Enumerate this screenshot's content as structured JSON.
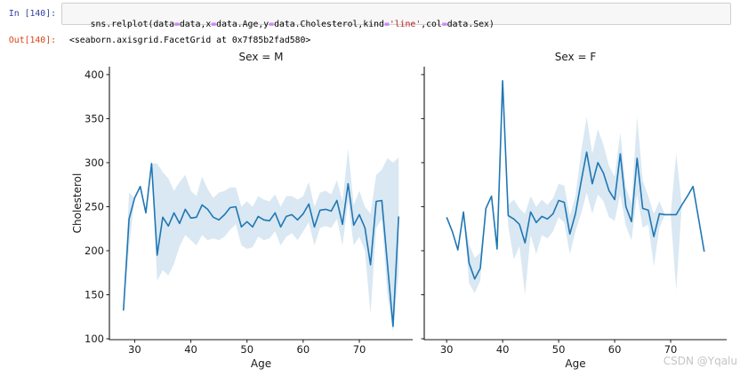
{
  "notebook": {
    "in_prompt": "In [140]:",
    "out_prompt": "Out[140]:",
    "code_tokens": [
      {
        "text": "sns.relplot(data",
        "style": "plain"
      },
      {
        "text": "=",
        "style": "operator"
      },
      {
        "text": "data,x",
        "style": "plain"
      },
      {
        "text": "=",
        "style": "operator"
      },
      {
        "text": "data.Age,y",
        "style": "plain"
      },
      {
        "text": "=",
        "style": "operator"
      },
      {
        "text": "data.Cholesterol,kind",
        "style": "plain"
      },
      {
        "text": "=",
        "style": "operator"
      },
      {
        "text": "'line'",
        "style": "string"
      },
      {
        "text": ",col",
        "style": "plain"
      },
      {
        "text": "=",
        "style": "operator"
      },
      {
        "text": "data.Sex)",
        "style": "plain"
      }
    ],
    "output_text": "<seaborn.axisgrid.FacetGrid at 0x7f85b2fad580>"
  },
  "watermark": "CSDN @Yqalu",
  "colors": {
    "line": "#1f77b4",
    "band_fill": "#1f77b4",
    "band_opacity": 0.17,
    "axis": "#1a1a1a",
    "in_prompt": "#303f9f",
    "out_prompt": "#d84315",
    "code_operator": "#aa22ff",
    "code_string": "#ba2121",
    "watermark": "#c5c5c9",
    "cell_bg": "#f7f7f7",
    "cell_border": "#cfcfcf"
  },
  "chart_data": [
    {
      "type": "line",
      "title": "Sex = M",
      "xlabel": "Age",
      "ylabel": "Cholesterol",
      "xticks": [
        30,
        40,
        50,
        60,
        70
      ],
      "yticks": [
        100,
        150,
        200,
        250,
        300,
        350,
        400
      ],
      "ylim": [
        99,
        409
      ],
      "x": [
        28,
        29,
        30,
        31,
        32,
        33,
        34,
        35,
        36,
        37,
        38,
        39,
        40,
        41,
        42,
        43,
        44,
        45,
        46,
        47,
        48,
        49,
        50,
        51,
        52,
        53,
        54,
        55,
        56,
        57,
        58,
        59,
        60,
        61,
        62,
        63,
        64,
        65,
        66,
        67,
        68,
        69,
        70,
        71,
        72,
        73,
        74,
        75,
        76,
        77
      ],
      "y": [
        132,
        236,
        260,
        273,
        243,
        299,
        195,
        238,
        228,
        243,
        231,
        247,
        237,
        238,
        252,
        247,
        238,
        235,
        241,
        249,
        250,
        227,
        233,
        227,
        239,
        235,
        234,
        243,
        227,
        239,
        241,
        235,
        242,
        253,
        227,
        246,
        247,
        245,
        257,
        230,
        276,
        229,
        241,
        226,
        184,
        256,
        257,
        185,
        114,
        239
      ],
      "band_lower": [
        132,
        204,
        260,
        273,
        243,
        299,
        166,
        178,
        172,
        185,
        205,
        218,
        212,
        206,
        218,
        212,
        214,
        212,
        216,
        224,
        230,
        206,
        202,
        204,
        216,
        212,
        214,
        222,
        206,
        216,
        220,
        212,
        222,
        232,
        206,
        226,
        228,
        226,
        236,
        206,
        256,
        206,
        216,
        200,
        128,
        226,
        236,
        150,
        108,
        176
      ],
      "band_upper": [
        132,
        266,
        260,
        273,
        243,
        299,
        299,
        289,
        282,
        268,
        278,
        286,
        268,
        262,
        284,
        270,
        260,
        266,
        268,
        272,
        272,
        250,
        256,
        250,
        262,
        258,
        256,
        264,
        250,
        262,
        262,
        258,
        262,
        278,
        250,
        266,
        268,
        264,
        280,
        256,
        316,
        252,
        268,
        250,
        242,
        286,
        292,
        305,
        300,
        306
      ]
    },
    {
      "type": "line",
      "title": "Sex = F",
      "xlabel": "Age",
      "ylabel": "",
      "xticks": [
        30,
        40,
        50,
        60,
        70
      ],
      "yticks": [
        100,
        150,
        200,
        250,
        300,
        350,
        400
      ],
      "ylim": [
        99,
        409
      ],
      "x": [
        30,
        31,
        32,
        33,
        34,
        35,
        36,
        37,
        38,
        39,
        40,
        41,
        42,
        43,
        44,
        45,
        46,
        47,
        48,
        49,
        50,
        51,
        52,
        53,
        54,
        55,
        56,
        57,
        58,
        59,
        60,
        61,
        62,
        63,
        64,
        65,
        66,
        67,
        68,
        69,
        70,
        71,
        72,
        73,
        74,
        75,
        76
      ],
      "y": [
        238,
        222,
        201,
        244,
        186,
        168,
        180,
        248,
        262,
        202,
        393,
        240,
        236,
        230,
        209,
        244,
        232,
        239,
        236,
        242,
        257,
        255,
        219,
        242,
        278,
        312,
        276,
        300,
        288,
        268,
        258,
        310,
        250,
        233,
        305,
        248,
        246,
        216,
        242,
        241,
        241,
        241,
        252,
        262,
        273,
        236,
        199
      ],
      "band_lower": [
        238,
        222,
        201,
        244,
        163,
        152,
        166,
        248,
        262,
        196,
        393,
        228,
        190,
        205,
        150,
        218,
        196,
        218,
        214,
        222,
        238,
        232,
        196,
        222,
        242,
        266,
        242,
        264,
        256,
        238,
        234,
        264,
        228,
        212,
        264,
        226,
        230,
        182,
        226,
        241,
        241,
        155,
        252,
        262,
        273,
        236,
        199
      ],
      "band_upper": [
        238,
        222,
        201,
        244,
        207,
        192,
        198,
        248,
        262,
        214,
        393,
        252,
        258,
        248,
        242,
        262,
        250,
        258,
        252,
        260,
        276,
        274,
        240,
        262,
        312,
        352,
        310,
        338,
        320,
        296,
        284,
        334,
        272,
        254,
        352,
        280,
        262,
        242,
        256,
        241,
        241,
        310,
        252,
        262,
        273,
        236,
        199
      ]
    }
  ]
}
